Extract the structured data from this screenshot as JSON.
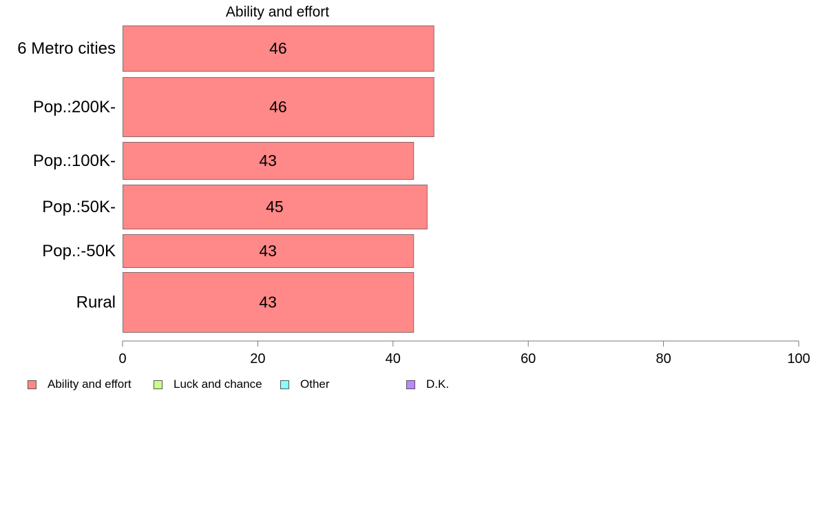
{
  "chart_data": {
    "type": "bar",
    "orientation": "horizontal",
    "title": "Ability and effort",
    "categories": [
      "6 Metro cities",
      "Pop.:200K-",
      "Pop.:100K-",
      "Pop.:50K-",
      "Pop.:-50K",
      "Rural"
    ],
    "values": [
      46,
      46,
      43,
      45,
      43,
      43
    ],
    "data_labels": [
      "46",
      "46",
      "43",
      "45",
      "43",
      "43"
    ],
    "xlim": [
      0,
      100
    ],
    "xticks": [
      0,
      20,
      40,
      60,
      80,
      100
    ],
    "grid": false,
    "bar_color": "#ff8888",
    "legend": {
      "placement": "bottom-left",
      "entries": [
        {
          "label": "Ability and effort",
          "color": "#ff8888"
        },
        {
          "label": "Luck and chance",
          "color": "#ccff88"
        },
        {
          "label": "Other",
          "color": "#88ffff"
        },
        {
          "label": "D.K.",
          "color": "#bb88ff"
        }
      ]
    }
  }
}
